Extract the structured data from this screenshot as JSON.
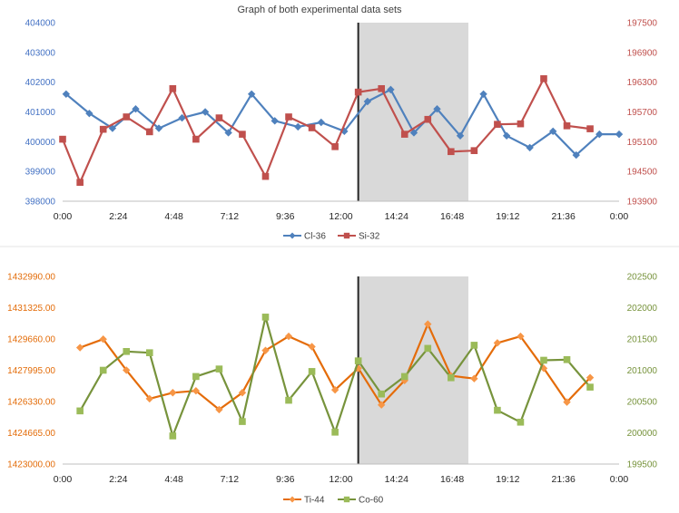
{
  "chart_data": [
    {
      "type": "line",
      "title": "Graph of both experimental data sets",
      "x_tick_labels": [
        "0:00",
        "2:24",
        "4:48",
        "7:12",
        "9:36",
        "12:00",
        "14:24",
        "16:48",
        "19:12",
        "21:36",
        "0:00"
      ],
      "x_range_hours": [
        0,
        24
      ],
      "marker_time_hours": 12.75,
      "shaded_range_hours": [
        12.75,
        17.5
      ],
      "left_axis": {
        "color": "#4472C4",
        "ylim": [
          398000,
          404000
        ],
        "ticks": [
          398000,
          399000,
          400000,
          401000,
          402000,
          403000,
          404000
        ],
        "tick_labels": [
          "398000",
          "399000",
          "400000",
          "401000",
          "402000",
          "403000",
          "404000"
        ]
      },
      "right_axis": {
        "color": "#C0504D",
        "ylim": [
          193900,
          197500
        ],
        "ticks": [
          193900,
          194500,
          195100,
          195700,
          196300,
          196900,
          197500
        ],
        "tick_labels": [
          "193900",
          "194500",
          "195100",
          "195700",
          "196300",
          "196900",
          "197500"
        ]
      },
      "series": [
        {
          "name": "Cl-36",
          "axis": "left",
          "color": "#4F81BD",
          "marker": "diamond",
          "x": [
            0.15,
            1.15,
            2.15,
            3.15,
            4.15,
            5.15,
            6.15,
            7.15,
            8.15,
            9.15,
            10.15,
            11.15,
            12.15,
            13.15,
            14.15,
            15.15,
            16.15,
            17.15,
            18.15,
            19.15,
            20.15,
            21.15,
            22.15,
            23.15,
            24.0
          ],
          "values": [
            401600,
            400950,
            400450,
            401100,
            400450,
            400800,
            401000,
            400300,
            401600,
            400700,
            400500,
            400650,
            400350,
            401350,
            401750,
            400300,
            401100,
            400200,
            401600,
            400200,
            399800,
            400350,
            399550,
            400250,
            400250
          ]
        },
        {
          "name": "Si-32",
          "axis": "right",
          "color": "#C0504D",
          "marker": "square",
          "x": [
            0.0,
            0.75,
            1.75,
            2.75,
            3.75,
            4.75,
            5.75,
            6.75,
            7.75,
            8.75,
            9.75,
            10.75,
            11.75,
            12.75,
            13.75,
            14.75,
            15.75,
            16.75,
            17.75,
            18.75,
            19.75,
            20.75,
            21.75,
            22.75
          ],
          "values": [
            195150,
            194280,
            195350,
            195600,
            195300,
            196170,
            195150,
            195580,
            195250,
            194400,
            195600,
            195380,
            195000,
            196100,
            196170,
            195250,
            195550,
            194900,
            194920,
            195450,
            195460,
            196370,
            195420,
            195360
          ]
        }
      ],
      "legend": [
        "Cl-36",
        "Si-32"
      ],
      "legend_position": "bottom"
    },
    {
      "type": "line",
      "title": "",
      "x_tick_labels": [
        "0:00",
        "2:24",
        "4:48",
        "7:12",
        "9:36",
        "12:00",
        "14:24",
        "16:48",
        "19:12",
        "21:36",
        "0:00"
      ],
      "x_range_hours": [
        0,
        24
      ],
      "marker_time_hours": 12.75,
      "shaded_range_hours": [
        12.75,
        17.5
      ],
      "left_axis": {
        "color": "#E36C09",
        "ylim": [
          1423000,
          1432990
        ],
        "ticks": [
          1423000,
          1424665,
          1426330,
          1427995,
          1429660,
          1431325,
          1432990
        ],
        "tick_labels": [
          "1423000.00",
          "1424665.00",
          "1426330.00",
          "1427995.00",
          "1429660.00",
          "1431325.00",
          "1432990.00"
        ]
      },
      "right_axis": {
        "color": "#77933C",
        "ylim": [
          199500,
          202500
        ],
        "ticks": [
          199500,
          200000,
          200500,
          201000,
          201500,
          202000,
          202500
        ],
        "tick_labels": [
          "199500",
          "200000",
          "200500",
          "201000",
          "201500",
          "202000",
          "202500"
        ]
      },
      "series": [
        {
          "name": "Ti-44",
          "axis": "left",
          "color": "#F79646",
          "line_color": "#E46C0A",
          "marker": "diamond",
          "x": [
            0.75,
            1.75,
            2.75,
            3.75,
            4.75,
            5.75,
            6.75,
            7.75,
            8.75,
            9.75,
            10.75,
            11.75,
            12.75,
            13.75,
            14.75,
            15.75,
            16.75,
            17.75,
            18.75,
            19.75,
            20.75,
            21.75,
            22.75
          ],
          "values": [
            1429200,
            1429650,
            1428000,
            1426480,
            1426800,
            1426900,
            1425900,
            1426800,
            1429050,
            1429800,
            1429250,
            1426950,
            1428100,
            1426150,
            1427450,
            1430450,
            1427700,
            1427550,
            1429450,
            1429800,
            1428100,
            1426300,
            1427600
          ]
        },
        {
          "name": "Co-60",
          "axis": "right",
          "color": "#9BBB59",
          "line_color": "#77933C",
          "marker": "square",
          "x": [
            0.75,
            1.75,
            2.75,
            3.75,
            4.75,
            5.75,
            6.75,
            7.75,
            8.75,
            9.75,
            10.75,
            11.75,
            12.75,
            13.75,
            14.75,
            15.75,
            16.75,
            17.75,
            18.75,
            19.75,
            20.75,
            21.75,
            22.75
          ],
          "values": [
            200350,
            201000,
            201300,
            201280,
            199950,
            200900,
            201020,
            200180,
            201850,
            200520,
            200980,
            200010,
            201150,
            200620,
            200900,
            201350,
            200880,
            201400,
            200360,
            200170,
            201160,
            201170,
            200730
          ]
        }
      ],
      "legend": [
        "Ti-44",
        "Co-60"
      ],
      "legend_position": "bottom"
    }
  ]
}
